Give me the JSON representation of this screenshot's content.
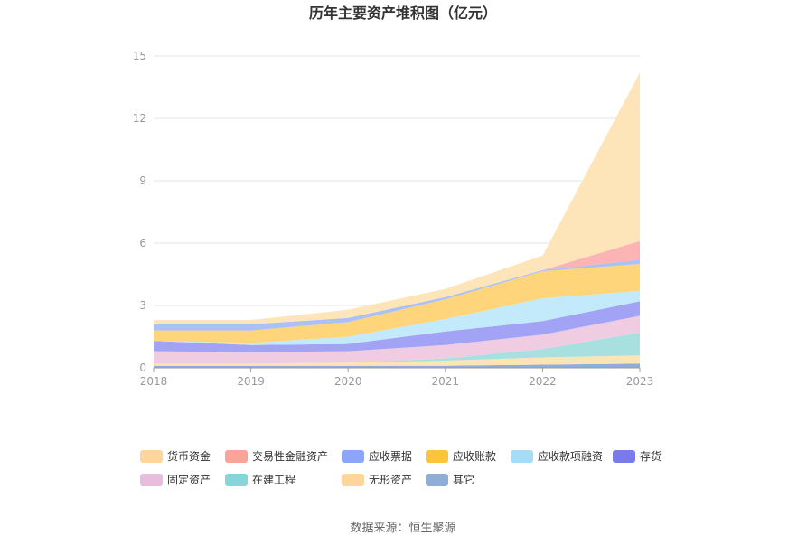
{
  "chart_data": {
    "type": "area",
    "stacked": true,
    "title": "历年主要资产堆积图（亿元）",
    "x": [
      "2018",
      "2019",
      "2020",
      "2021",
      "2022",
      "2023"
    ],
    "ylim": [
      0,
      15
    ],
    "yticks": [
      "0",
      "3",
      "6",
      "9",
      "12",
      "15"
    ],
    "grid": true,
    "legend_position": "bottom",
    "series": [
      {
        "name": "其它",
        "color": "#8eaed9",
        "values": [
          0.1,
          0.1,
          0.1,
          0.1,
          0.15,
          0.2
        ]
      },
      {
        "name": "无形资产",
        "color": "#fde4b4",
        "values": [
          0.1,
          0.1,
          0.15,
          0.25,
          0.35,
          0.4
        ]
      },
      {
        "name": "在建工程",
        "color": "#a8e0e0",
        "values": [
          0.0,
          0.0,
          0.0,
          0.1,
          0.4,
          1.1
        ]
      },
      {
        "name": "固定资产",
        "color": "#f0cce3",
        "values": [
          0.6,
          0.55,
          0.55,
          0.65,
          0.7,
          0.8
        ]
      },
      {
        "name": "存货",
        "color": "#a3a3f5",
        "values": [
          0.5,
          0.35,
          0.35,
          0.65,
          0.65,
          0.7
        ]
      },
      {
        "name": "应收款项融资",
        "color": "#c2eafb",
        "values": [
          0.0,
          0.1,
          0.35,
          0.6,
          1.1,
          0.5
        ]
      },
      {
        "name": "应收账款",
        "color": "#fed57b",
        "values": [
          0.5,
          0.6,
          0.7,
          0.95,
          1.3,
          1.3
        ]
      },
      {
        "name": "应收票据",
        "color": "#aac0f7",
        "values": [
          0.3,
          0.3,
          0.2,
          0.1,
          0.05,
          0.2
        ]
      },
      {
        "name": "交易性金融资产",
        "color": "#fbb3b3",
        "values": [
          0.0,
          0.0,
          0.0,
          0.0,
          0.0,
          0.9
        ]
      },
      {
        "name": "货币资金",
        "color": "#fee5b9",
        "values": [
          0.2,
          0.2,
          0.4,
          0.4,
          0.7,
          8.1
        ]
      }
    ],
    "legend": [
      {
        "name": "货币资金",
        "color": "#fed59a"
      },
      {
        "name": "交易性金融资产",
        "color": "#f9a498"
      },
      {
        "name": "应收票据",
        "color": "#8ca5f6"
      },
      {
        "name": "应收账款",
        "color": "#fdc33b"
      },
      {
        "name": "应收款项融资",
        "color": "#a5dcf6"
      },
      {
        "name": "存货",
        "color": "#7a7bea"
      },
      {
        "name": "固定资产",
        "color": "#e8bcdd"
      },
      {
        "name": "在建工程",
        "color": "#86d5d8"
      },
      {
        "name": "无形资产",
        "color": "#fed59a"
      },
      {
        "name": "其它",
        "color": "#8eaed9"
      }
    ],
    "source": "数据来源：恒生聚源"
  }
}
